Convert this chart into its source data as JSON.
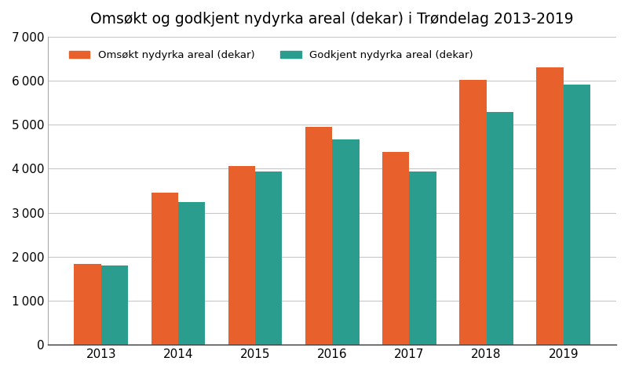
{
  "title": "Omsøkt og godkjent nydyrka areal (dekar) i Trøndelag 2013-2019",
  "years": [
    2013,
    2014,
    2015,
    2016,
    2017,
    2018,
    2019
  ],
  "omsokt": [
    1830,
    3450,
    4060,
    4950,
    4370,
    6010,
    6300
  ],
  "godkjent": [
    1800,
    3240,
    3930,
    4670,
    3930,
    5290,
    5910
  ],
  "color_omsokt": "#E8602C",
  "color_godkjent": "#2A9D8F",
  "legend_omsokt": "Omsøkt nydyrka areal (dekar)",
  "legend_godkjent": "Godkjent nydyrka areal (dekar)",
  "ylim": [
    0,
    7000
  ],
  "yticks": [
    0,
    1000,
    2000,
    3000,
    4000,
    5000,
    6000,
    7000
  ],
  "background_color": "#ffffff",
  "grid_color": "#c8c8c8",
  "title_fontsize": 13.5,
  "bar_width": 0.35,
  "figsize": [
    8.0,
    4.75
  ],
  "dpi": 100
}
